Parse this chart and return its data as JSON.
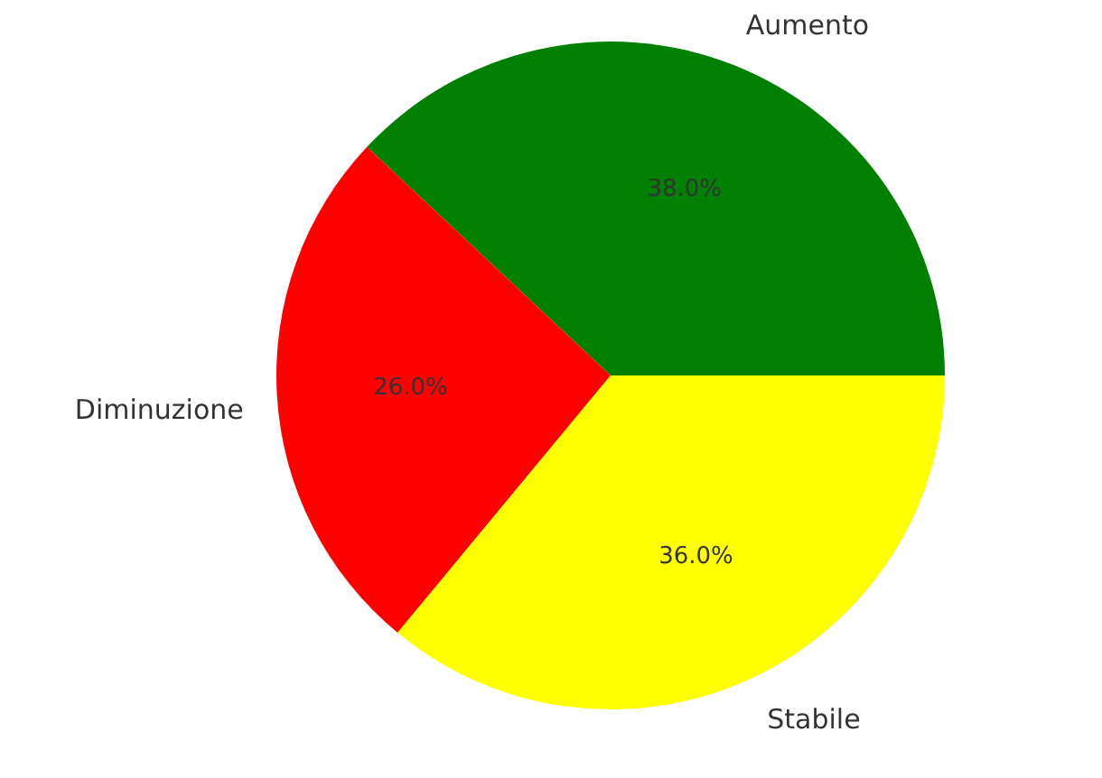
{
  "chart_data": {
    "type": "pie",
    "categories": [
      "Aumento",
      "Diminuzione",
      "Stabile"
    ],
    "values": [
      38,
      26,
      36
    ],
    "colors": [
      "#008000",
      "#ff0000",
      "#ffff00"
    ],
    "value_labels": [
      "38.0%",
      "26.0%",
      "36.0%"
    ]
  }
}
